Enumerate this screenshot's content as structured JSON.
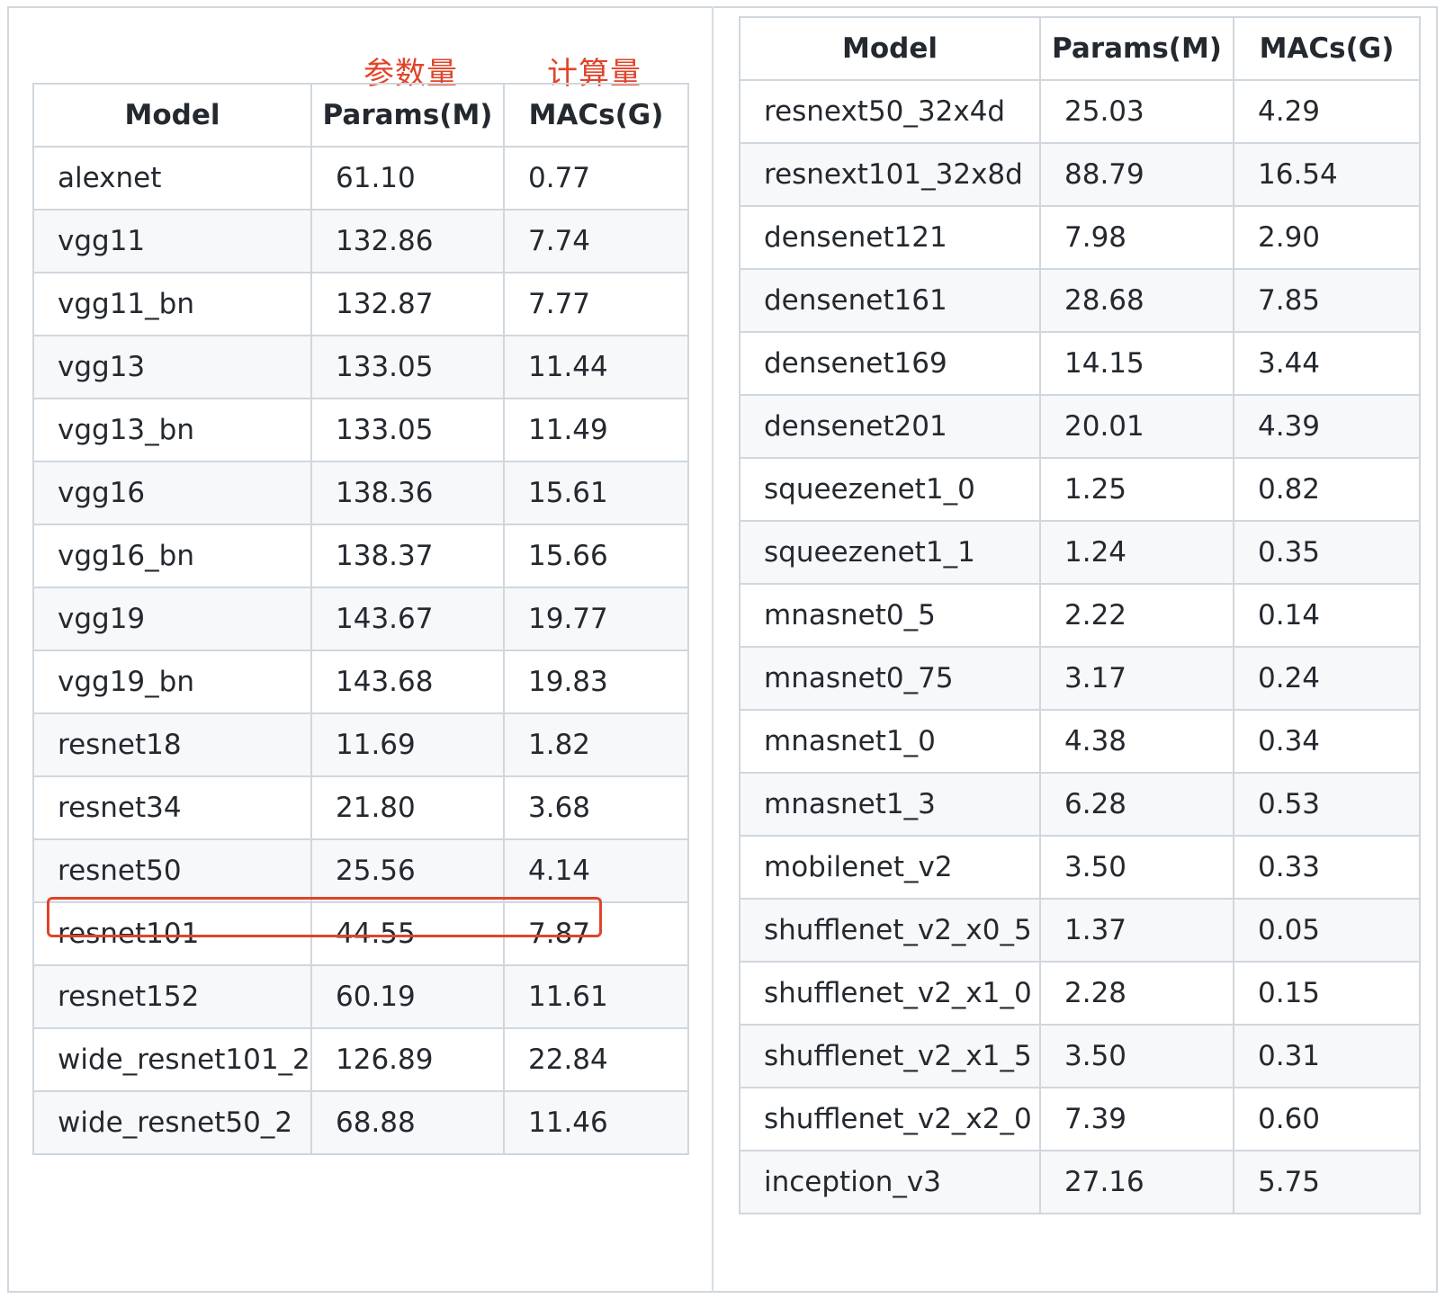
{
  "annotations": {
    "params": "参数量",
    "macs": "计算量"
  },
  "colors": {
    "annotation": "#e0442a",
    "border": "#d0d7de",
    "stripe": "#f6f8fa"
  },
  "left_table": {
    "headers": [
      "Model",
      "Params(M)",
      "MACs(G)"
    ],
    "rows": [
      [
        "alexnet",
        "61.10",
        "0.77"
      ],
      [
        "vgg11",
        "132.86",
        "7.74"
      ],
      [
        "vgg11_bn",
        "132.87",
        "7.77"
      ],
      [
        "vgg13",
        "133.05",
        "11.44"
      ],
      [
        "vgg13_bn",
        "133.05",
        "11.49"
      ],
      [
        "vgg16",
        "138.36",
        "15.61"
      ],
      [
        "vgg16_bn",
        "138.37",
        "15.66"
      ],
      [
        "vgg19",
        "143.67",
        "19.77"
      ],
      [
        "vgg19_bn",
        "143.68",
        "19.83"
      ],
      [
        "resnet18",
        "11.69",
        "1.82"
      ],
      [
        "resnet34",
        "21.80",
        "3.68"
      ],
      [
        "resnet50",
        "25.56",
        "4.14"
      ],
      [
        "resnet101",
        "44.55",
        "7.87"
      ],
      [
        "resnet152",
        "60.19",
        "11.61"
      ],
      [
        "wide_resnet101_2",
        "126.89",
        "22.84"
      ],
      [
        "wide_resnet50_2",
        "68.88",
        "11.46"
      ]
    ]
  },
  "right_table": {
    "headers": [
      "Model",
      "Params(M)",
      "MACs(G)"
    ],
    "rows": [
      [
        "resnext50_32x4d",
        "25.03",
        "4.29"
      ],
      [
        "resnext101_32x8d",
        "88.79",
        "16.54"
      ],
      [
        "densenet121",
        "7.98",
        "2.90"
      ],
      [
        "densenet161",
        "28.68",
        "7.85"
      ],
      [
        "densenet169",
        "14.15",
        "3.44"
      ],
      [
        "densenet201",
        "20.01",
        "4.39"
      ],
      [
        "squeezenet1_0",
        "1.25",
        "0.82"
      ],
      [
        "squeezenet1_1",
        "1.24",
        "0.35"
      ],
      [
        "mnasnet0_5",
        "2.22",
        "0.14"
      ],
      [
        "mnasnet0_75",
        "3.17",
        "0.24"
      ],
      [
        "mnasnet1_0",
        "4.38",
        "0.34"
      ],
      [
        "mnasnet1_3",
        "6.28",
        "0.53"
      ],
      [
        "mobilenet_v2",
        "3.50",
        "0.33"
      ],
      [
        "shufflenet_v2_x0_5",
        "1.37",
        "0.05"
      ],
      [
        "shufflenet_v2_x1_0",
        "2.28",
        "0.15"
      ],
      [
        "shufflenet_v2_x1_5",
        "3.50",
        "0.31"
      ],
      [
        "shufflenet_v2_x2_0",
        "7.39",
        "0.60"
      ],
      [
        "inception_v3",
        "27.16",
        "5.75"
      ]
    ]
  }
}
